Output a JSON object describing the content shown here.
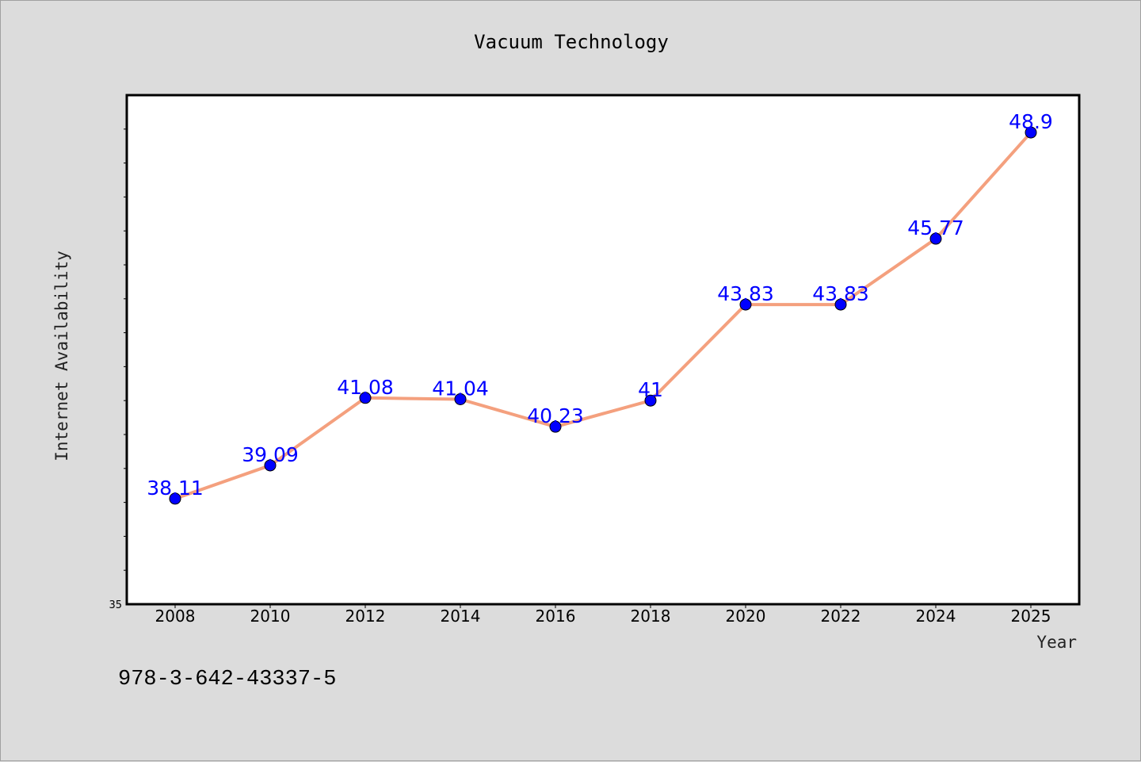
{
  "chart_data": {
    "type": "line",
    "title": "Vacuum Technology",
    "xlabel": "Year",
    "ylabel": "Internet Availability",
    "x": [
      "2008",
      "2010",
      "2012",
      "2014",
      "2016",
      "2018",
      "2020",
      "2022",
      "2024",
      "2025"
    ],
    "series": [
      {
        "values": [
          38.11,
          39.09,
          41.08,
          41.04,
          40.23,
          41,
          43.83,
          43.83,
          45.77,
          48.9
        ],
        "labels": [
          "38.11",
          "39.09",
          "41.08",
          "41.04",
          "40.23",
          "41",
          "43.83",
          "43.83",
          "45.77",
          "48.9"
        ]
      }
    ],
    "ylim": [
      35,
      50
    ],
    "y_tick_labels": [
      "35"
    ],
    "grid": false,
    "colors": {
      "line": "#f4a07e",
      "marker": "#0000ff",
      "data_label": "#0000ff",
      "background": "#dcdcdc",
      "plot_bg": "#ffffff"
    }
  },
  "footnote": "978-3-642-43337-5"
}
